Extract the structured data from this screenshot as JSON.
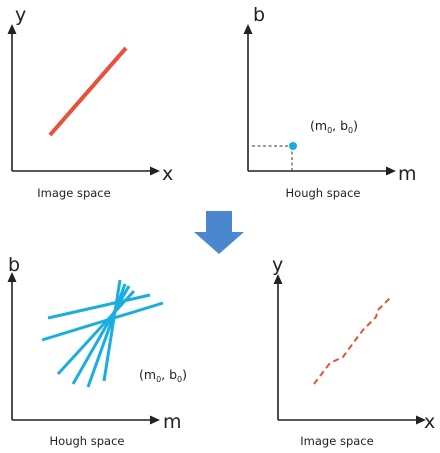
{
  "colors": {
    "line_red": "#e8513a",
    "hough_blue": "#1aaee0",
    "arrow_blue": "#4a87cf",
    "axis": "#222222"
  },
  "panels": {
    "top_left": {
      "y_axis_label": "y",
      "x_axis_label": "x",
      "caption": "Image space"
    },
    "top_right": {
      "y_axis_label": "b",
      "x_axis_label": "m",
      "caption": "Hough space",
      "point_label": {
        "open": "(m",
        "sub1": "0",
        "mid": ", b",
        "sub2": "0",
        "close": ")"
      }
    },
    "bottom_left": {
      "y_axis_label": "b",
      "x_axis_label": "m",
      "caption": "Hough space",
      "point_label": {
        "open": "(m",
        "sub1": "0",
        "mid": ", b",
        "sub2": "0",
        "close": ")"
      }
    },
    "bottom_right": {
      "y_axis_label": "y",
      "x_axis_label": "x",
      "caption": "Image space"
    }
  },
  "transition_arrow_icon": "down-arrow-icon"
}
